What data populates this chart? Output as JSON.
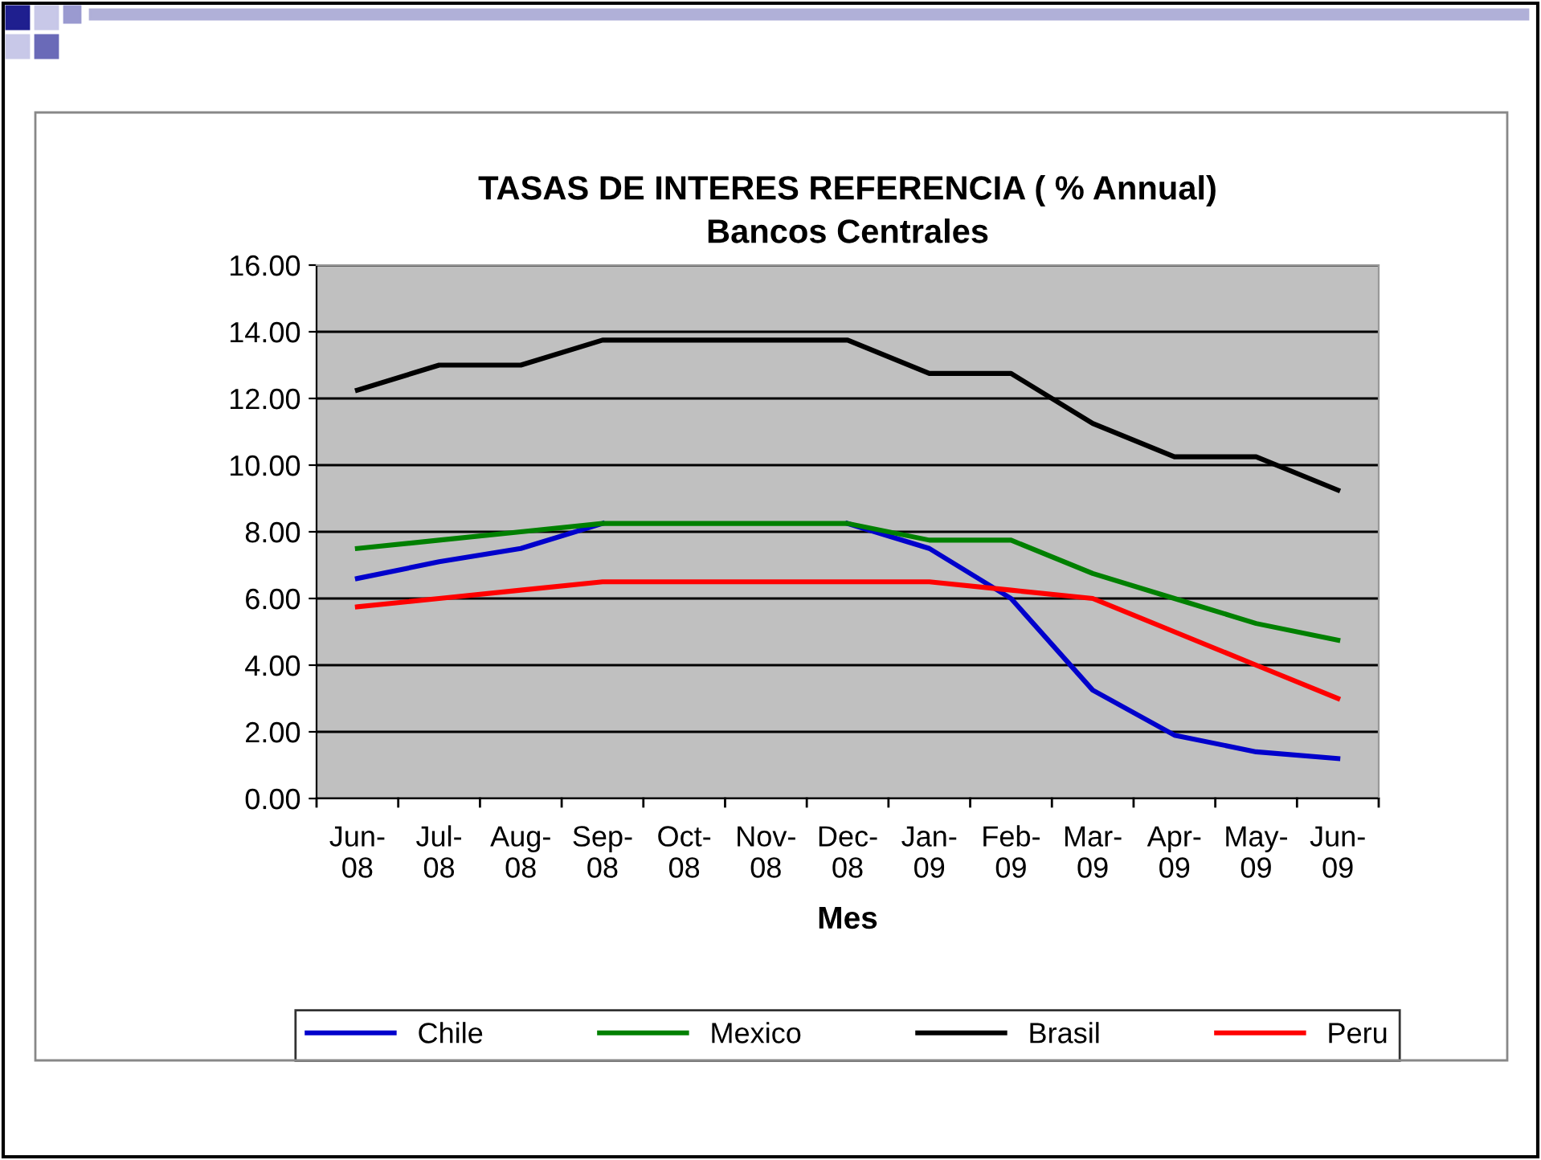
{
  "chart_data": {
    "type": "line",
    "title": "TASAS DE INTERES REFERENCIA ( % Annual)\nBancos Centrales",
    "xlabel": "Mes",
    "categories": [
      "Jun-\n08",
      "Jul-\n08",
      "Aug-\n08",
      "Sep-\n08",
      "Oct-\n08",
      "Nov-\n08",
      "Dec-\n08",
      "Jan-\n09",
      "Feb-\n09",
      "Mar-\n09",
      "Apr-\n09",
      "May-\n09",
      "Jun-\n09"
    ],
    "series": [
      {
        "name": "Chile",
        "color": "#0000cc",
        "values": [
          6.6,
          7.1,
          7.5,
          8.25,
          null,
          null,
          8.25,
          7.5,
          6.0,
          3.25,
          1.9,
          1.4,
          1.2
        ]
      },
      {
        "name": "Mexico",
        "color": "#008000",
        "values": [
          7.5,
          7.75,
          8.0,
          8.25,
          8.25,
          8.25,
          8.25,
          7.75,
          7.75,
          6.75,
          6.0,
          5.25,
          4.75
        ]
      },
      {
        "name": "Brasil",
        "color": "#000000",
        "values": [
          12.25,
          13.0,
          13.0,
          13.75,
          13.75,
          13.75,
          13.75,
          12.75,
          12.75,
          11.25,
          10.25,
          10.25,
          9.25
        ]
      },
      {
        "name": "Peru",
        "color": "#ff0000",
        "values": [
          5.75,
          6.0,
          6.25,
          6.5,
          6.5,
          6.5,
          6.5,
          6.5,
          6.25,
          6.0,
          5.0,
          4.0,
          3.0
        ]
      }
    ],
    "ylim": [
      0,
      16
    ],
    "yticks": [
      {
        "value": 0,
        "label": "0.00"
      },
      {
        "value": 2,
        "label": "2.00"
      },
      {
        "value": 4,
        "label": "4.00"
      },
      {
        "value": 6,
        "label": "6.00"
      },
      {
        "value": 8,
        "label": "8.00"
      },
      {
        "value": 10,
        "label": "10.00"
      },
      {
        "value": 12,
        "label": "12.00"
      },
      {
        "value": 14,
        "label": "14.00"
      },
      {
        "value": 16,
        "label": "16.00"
      }
    ],
    "grid": "y",
    "legend": "bottom",
    "marker": "none",
    "line_style": "solid"
  }
}
